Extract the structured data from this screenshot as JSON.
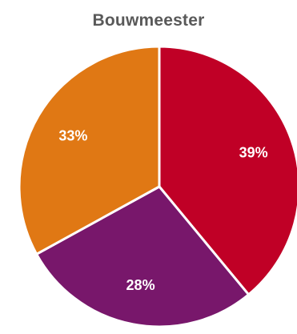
{
  "chart_data": {
    "type": "pie",
    "title": "Bouwmeester",
    "slices": [
      {
        "label": "39%",
        "value": 39,
        "color": "#C00026"
      },
      {
        "label": "28%",
        "value": 28,
        "color": "#78176B"
      },
      {
        "label": "33%",
        "value": 33,
        "color": "#E07814"
      }
    ],
    "start_angle_deg": 0,
    "direction": "clockwise",
    "legend": "none"
  }
}
